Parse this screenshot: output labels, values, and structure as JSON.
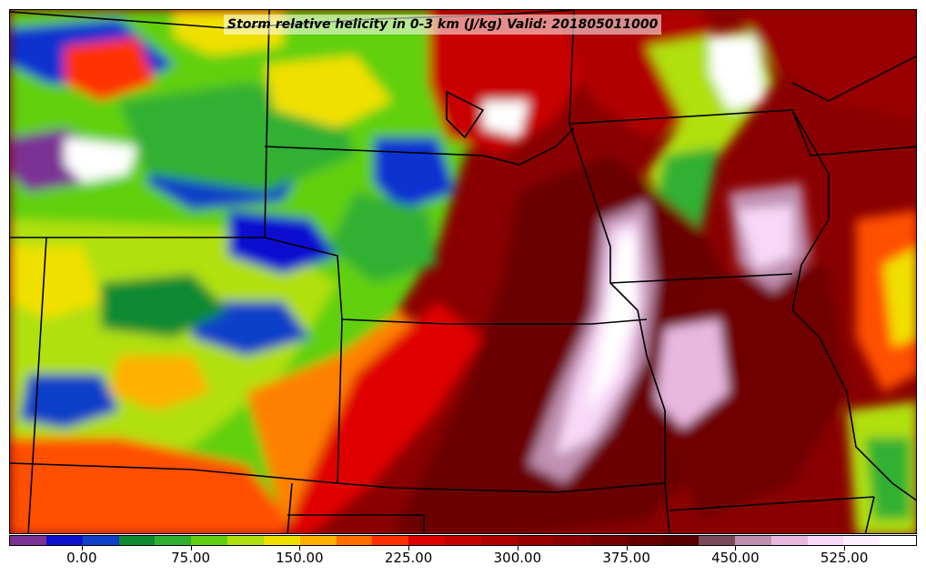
{
  "title": "Storm relative helicity in 0-3 km (J/kg) Valid: 201805011000",
  "colorbar": {
    "colors": [
      "#7b3294",
      "#1010d0",
      "#1040c8",
      "#108a30",
      "#30b030",
      "#60d010",
      "#b0e010",
      "#f0e000",
      "#ffb000",
      "#ff7000",
      "#ff3000",
      "#e00000",
      "#c80000",
      "#b00000",
      "#9a0000",
      "#8a0000",
      "#780000",
      "#660000",
      "#560000",
      "#7a4a5a",
      "#c090b0",
      "#e8b8e0",
      "#f8d8f8",
      "#fff0ff",
      "#ffffff"
    ],
    "ticks": [
      "0.00",
      "75.00",
      "150.00",
      "225.00",
      "300.00",
      "375.00",
      "450.00",
      "525.00"
    ]
  },
  "map": {
    "legend_levels": 25,
    "field": "storm relative helicity 0-3 km"
  }
}
